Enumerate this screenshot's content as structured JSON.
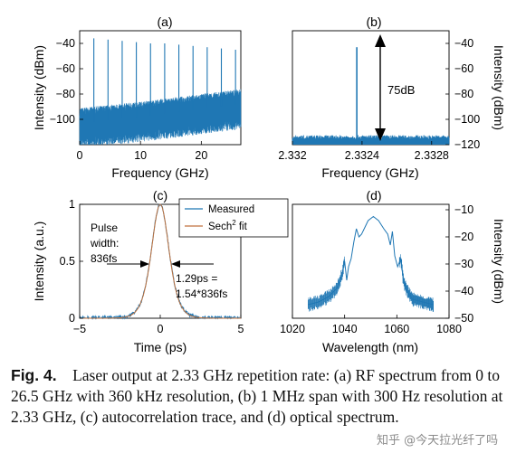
{
  "figure": {
    "caption_label": "Fig. 4.",
    "caption_text": "Laser output at 2.33 GHz repetition rate: (a) RF spectrum from 0 to 26.5 GHz with 360 kHz resolution, (b) 1 MHz span with 300 Hz resolution at 2.33 GHz, (c) autocorrelation trace, and (d) optical spectrum.",
    "watermark": "知乎 @今天拉光纤了吗",
    "trace_color": "#1f77b4",
    "fit_color": "#c0723d"
  },
  "chart_data": [
    {
      "panel": "(a)",
      "type": "line",
      "xlabel": "Frequency (GHz)",
      "ylabel": "Intensity (dBm)",
      "xlim": [
        0,
        26.5
      ],
      "ylim": [
        -120,
        -30
      ],
      "xticks": [
        0,
        10,
        20
      ],
      "yticks": [
        -40,
        -60,
        -80,
        -100
      ],
      "noise_floor": [
        {
          "x": 0,
          "y": -103
        },
        {
          "x": 10,
          "y": -98
        },
        {
          "x": 20,
          "y": -92
        },
        {
          "x": 26.5,
          "y": -88
        }
      ],
      "peaks": [
        {
          "x": 2.33,
          "y": -36
        },
        {
          "x": 4.66,
          "y": -37
        },
        {
          "x": 6.99,
          "y": -38
        },
        {
          "x": 9.32,
          "y": -39
        },
        {
          "x": 11.65,
          "y": -40
        },
        {
          "x": 13.98,
          "y": -40
        },
        {
          "x": 16.31,
          "y": -41
        },
        {
          "x": 18.64,
          "y": -42
        },
        {
          "x": 20.97,
          "y": -43
        },
        {
          "x": 23.3,
          "y": -44
        },
        {
          "x": 25.63,
          "y": -45
        }
      ]
    },
    {
      "panel": "(b)",
      "type": "line",
      "xlabel": "Frequency (GHz)",
      "ylabel": "Intensity (dBm)",
      "xlim": [
        2.332,
        2.3329
      ],
      "ylim": [
        -120,
        -30
      ],
      "xticks": [
        2.332,
        2.3324,
        2.3328
      ],
      "yticks": [
        -40,
        -60,
        -80,
        -100,
        -120
      ],
      "peak": {
        "x": 2.33237,
        "y": -43
      },
      "noise_floor": -117,
      "annotation": "75dB"
    },
    {
      "panel": "(c)",
      "type": "line",
      "xlabel": "Time (ps)",
      "ylabel": "Intensity (a.u.)",
      "xlim": [
        -5,
        5
      ],
      "ylim": [
        0,
        1
      ],
      "xticks": [
        -5,
        0,
        5
      ],
      "yticks": [
        0,
        0.5,
        1
      ],
      "series": [
        {
          "name": "Measured",
          "fwhm_ps": 1.29
        },
        {
          "name": "Sech² fit",
          "fwhm_ps": 1.29
        }
      ],
      "legend": [
        "Measured",
        "Sech",
        "2",
        " fit"
      ],
      "annotations": {
        "left_1": "Pulse",
        "left_2": "width:",
        "left_3": "836fs",
        "right_1": "1.29ps =",
        "right_2": "1.54*836fs"
      }
    },
    {
      "panel": "(d)",
      "type": "line",
      "xlabel": "Wavelength (nm)",
      "ylabel": "Intensity (dBm)",
      "xlim": [
        1020,
        1080
      ],
      "ylim": [
        -50,
        -8
      ],
      "xticks": [
        1020,
        1040,
        1060,
        1080
      ],
      "yticks": [
        -10,
        -20,
        -30,
        -40,
        -50
      ],
      "points": [
        {
          "x": 1026,
          "y": -45
        },
        {
          "x": 1030,
          "y": -44
        },
        {
          "x": 1034,
          "y": -42
        },
        {
          "x": 1037,
          "y": -39
        },
        {
          "x": 1039,
          "y": -34
        },
        {
          "x": 1040,
          "y": -29
        },
        {
          "x": 1040.8,
          "y": -36
        },
        {
          "x": 1041.5,
          "y": -31
        },
        {
          "x": 1042.5,
          "y": -28
        },
        {
          "x": 1043.5,
          "y": -22
        },
        {
          "x": 1044.5,
          "y": -17
        },
        {
          "x": 1045.5,
          "y": -20
        },
        {
          "x": 1046.5,
          "y": -19
        },
        {
          "x": 1047.5,
          "y": -17
        },
        {
          "x": 1049,
          "y": -14
        },
        {
          "x": 1051,
          "y": -12.5
        },
        {
          "x": 1053,
          "y": -14
        },
        {
          "x": 1055,
          "y": -17
        },
        {
          "x": 1056.5,
          "y": -19
        },
        {
          "x": 1057.5,
          "y": -23
        },
        {
          "x": 1058.3,
          "y": -18
        },
        {
          "x": 1059.2,
          "y": -27
        },
        {
          "x": 1060.3,
          "y": -31
        },
        {
          "x": 1061.5,
          "y": -28
        },
        {
          "x": 1062.5,
          "y": -36
        },
        {
          "x": 1064,
          "y": -40
        },
        {
          "x": 1066,
          "y": -43
        },
        {
          "x": 1070,
          "y": -44
        },
        {
          "x": 1074,
          "y": -45
        }
      ]
    }
  ]
}
